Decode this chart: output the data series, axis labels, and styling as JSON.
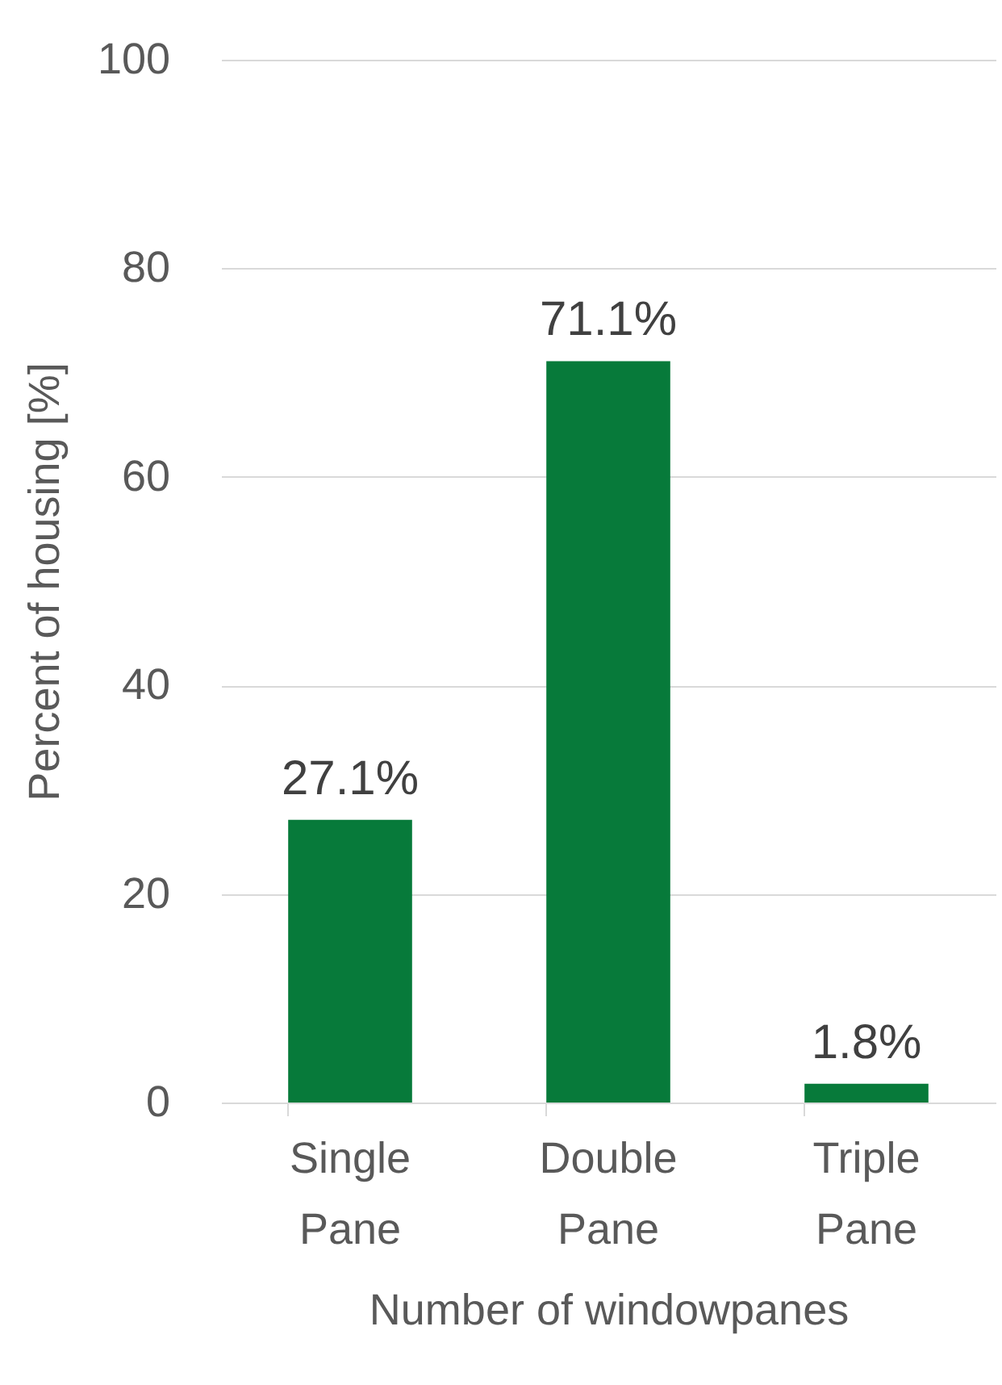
{
  "chart_data": {
    "type": "bar",
    "xlabel": "Number of windowpanes",
    "ylabel": "Percent of housing [%]",
    "categories": [
      "Single Pane",
      "Double Pane",
      "Triple Pane"
    ],
    "values": [
      27.1,
      71.1,
      1.8
    ],
    "value_labels": [
      "27.1%",
      "71.1%",
      "1.8%"
    ],
    "color": "#077a3a",
    "ylim": [
      0,
      100
    ],
    "yticks": [
      0,
      20,
      40,
      60,
      80,
      100
    ],
    "grid": "y"
  }
}
